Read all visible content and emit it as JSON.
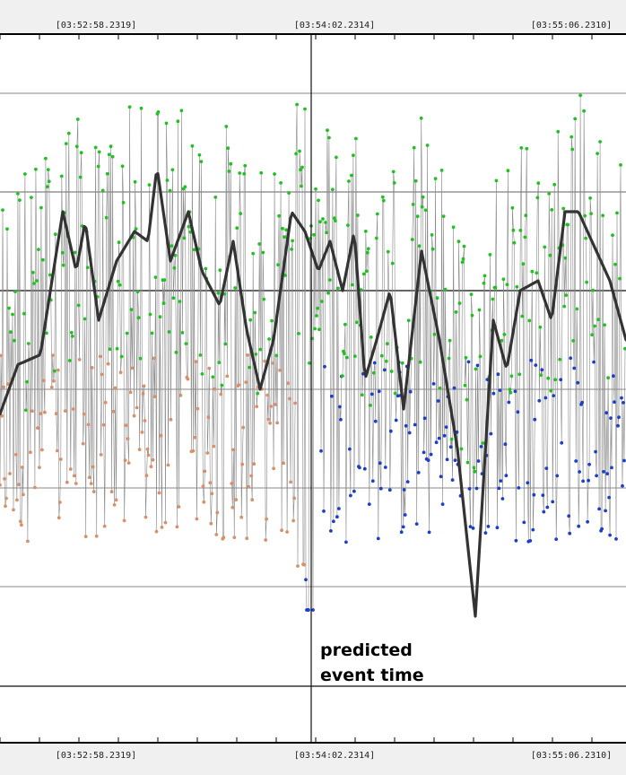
{
  "chart_data": {
    "type": "scatter",
    "title": "",
    "xlabel": "",
    "ylabel": "",
    "x_tick_labels": [
      "[03:52:58.2319]",
      "[03:54:02.2314]",
      "[03:55:06.2310]"
    ],
    "event_marker": {
      "label_line1": "predicted",
      "label_line2": "event time",
      "x_index": 340
    },
    "grid": true,
    "legend": "none",
    "n_points": 700,
    "series": [
      {
        "name": "",
        "color": "#22c022",
        "marker": "dot",
        "description_level": "upper scatter"
      },
      {
        "name": "",
        "color": "#d8906a",
        "marker": "dot",
        "range_index": [
          0,
          340
        ]
      },
      {
        "name": "",
        "color": "#1a3fc8",
        "marker": "dot",
        "range_index": [
          340,
          700
        ]
      },
      {
        "name": "",
        "color": "#333333",
        "marker": "none",
        "style": "smoothed line",
        "values_by_index": [
          [
            0,
            -1.25
          ],
          [
            20,
            -0.75
          ],
          [
            45,
            -0.65
          ],
          [
            70,
            0.8
          ],
          [
            85,
            0.2
          ],
          [
            95,
            0.7
          ],
          [
            110,
            -0.3
          ],
          [
            130,
            0.3
          ],
          [
            150,
            0.6
          ],
          [
            165,
            0.5
          ],
          [
            175,
            1.25
          ],
          [
            190,
            0.3
          ],
          [
            210,
            0.8
          ],
          [
            225,
            0.2
          ],
          [
            245,
            -0.15
          ],
          [
            260,
            0.5
          ],
          [
            275,
            -0.4
          ],
          [
            290,
            -1.0
          ],
          [
            305,
            -0.5
          ],
          [
            325,
            0.8
          ],
          [
            340,
            0.6
          ],
          [
            355,
            0.2
          ],
          [
            368,
            0.5
          ],
          [
            382,
            0.0
          ],
          [
            395,
            0.6
          ],
          [
            407,
            -0.9
          ],
          [
            420,
            -0.5
          ],
          [
            435,
            0.0
          ],
          [
            450,
            -1.2
          ],
          [
            470,
            0.4
          ],
          [
            490,
            -0.5
          ],
          [
            510,
            -1.6
          ],
          [
            530,
            -3.3
          ],
          [
            550,
            -0.3
          ],
          [
            565,
            -0.8
          ],
          [
            580,
            0.0
          ],
          [
            600,
            0.1
          ],
          [
            615,
            -0.3
          ],
          [
            630,
            0.8
          ],
          [
            645,
            0.8
          ],
          [
            660,
            0.5
          ],
          [
            680,
            0.1
          ],
          [
            698,
            -0.5
          ]
        ]
      }
    ]
  },
  "colors": {
    "background": "#ffffff",
    "frame": "#f0f0f0",
    "gridline": "#a8a8a8",
    "series_line": "#333333",
    "scatter_link": "#8a8a8a"
  }
}
